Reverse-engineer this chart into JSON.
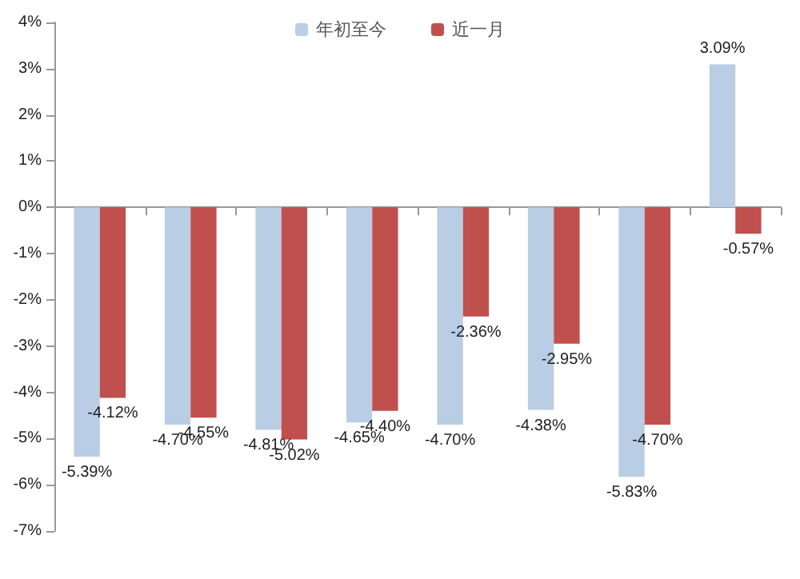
{
  "chart_data": {
    "type": "bar",
    "categories": [
      null,
      null,
      null,
      null,
      null,
      null,
      null,
      null
    ],
    "series": [
      {
        "name": "年初至今",
        "color": "#b9cde5",
        "values": [
          -5.39,
          -4.7,
          -4.81,
          -4.65,
          -4.7,
          -4.38,
          -5.83,
          3.09
        ],
        "value_labels": [
          "-5.39%",
          "-4.70%",
          "-4.81%",
          "-4.65%",
          "-4.70%",
          "-4.38%",
          "-5.83%",
          "3.09%"
        ]
      },
      {
        "name": "近一月",
        "color": "#c0504d",
        "values": [
          -4.12,
          -4.55,
          -5.02,
          -4.4,
          -2.36,
          -2.95,
          -4.7,
          -0.57
        ],
        "value_labels": [
          "-4.12%",
          "-4.55%",
          "-5.02%",
          "-4.40%",
          "-2.36%",
          "-2.95%",
          "-4.70%",
          "-0.57%"
        ]
      }
    ],
    "ylim": [
      -7,
      4
    ],
    "yticks": [
      {
        "value": -7,
        "label": "-7%"
      },
      {
        "value": -6,
        "label": "-6%"
      },
      {
        "value": -5,
        "label": "-5%"
      },
      {
        "value": -4,
        "label": "-4%"
      },
      {
        "value": -3,
        "label": "-3%"
      },
      {
        "value": -2,
        "label": "-2%"
      },
      {
        "value": -1,
        "label": "-1%"
      },
      {
        "value": 0,
        "label": "0%"
      },
      {
        "value": 1,
        "label": "1%"
      },
      {
        "value": 2,
        "label": "2%"
      },
      {
        "value": 3,
        "label": "3%"
      },
      {
        "value": 4,
        "label": "4%"
      }
    ],
    "legend": "top"
  }
}
